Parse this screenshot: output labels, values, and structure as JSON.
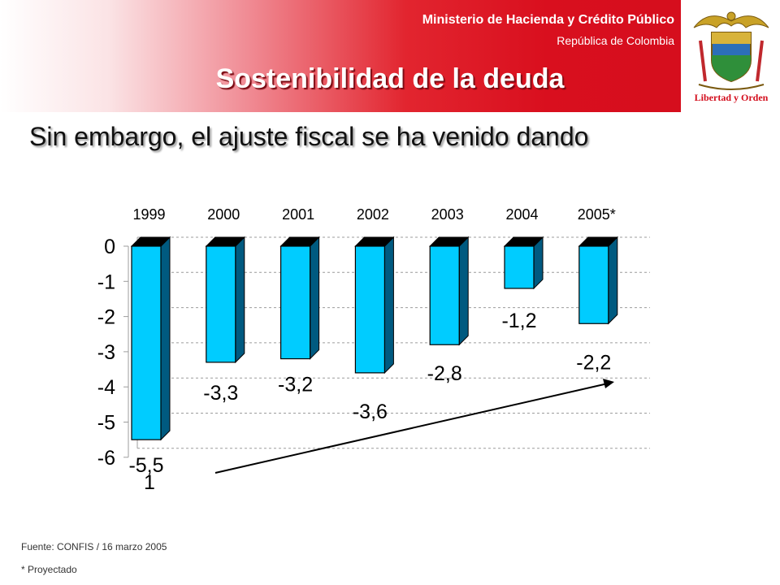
{
  "header": {
    "ministry": "Ministerio de Hacienda y Crédito Público",
    "republic": "República de Colombia",
    "title": "Sostenibilidad de la deuda",
    "logo_motto": "Libertad y Orden"
  },
  "subtitle": "Sin embargo, el ajuste fiscal se ha venido dando",
  "chart_data": {
    "type": "bar",
    "categories": [
      "1999",
      "2000",
      "2001",
      "2002",
      "2003",
      "2004",
      "2005*"
    ],
    "values": [
      -5.5,
      -3.3,
      -3.2,
      -3.6,
      -2.8,
      -1.2,
      -2.2
    ],
    "data_labels": [
      "-5,5",
      "-3,3",
      "-3,2",
      "-3,6",
      "-2,8",
      "-1,2",
      "-2,2"
    ],
    "y_ticks": [
      "0",
      "-1",
      "-2",
      "-3",
      "-4",
      "-5",
      "-6"
    ],
    "ylim": [
      -6,
      0
    ],
    "grid": true,
    "stray_text": "1",
    "annotation": "upward trend arrow from 2000 to 2005*",
    "colors": {
      "bar_front": "#00ccff",
      "bar_side": "#005a80",
      "bar_top": "#000000",
      "grid": "#9c9c9c"
    }
  },
  "footer": {
    "source": "Fuente: CONFIS / 16 marzo 2005",
    "note": "* Proyectado"
  },
  "colors": {
    "header_red": "#d90f1e",
    "title_text": "#ffffff"
  }
}
